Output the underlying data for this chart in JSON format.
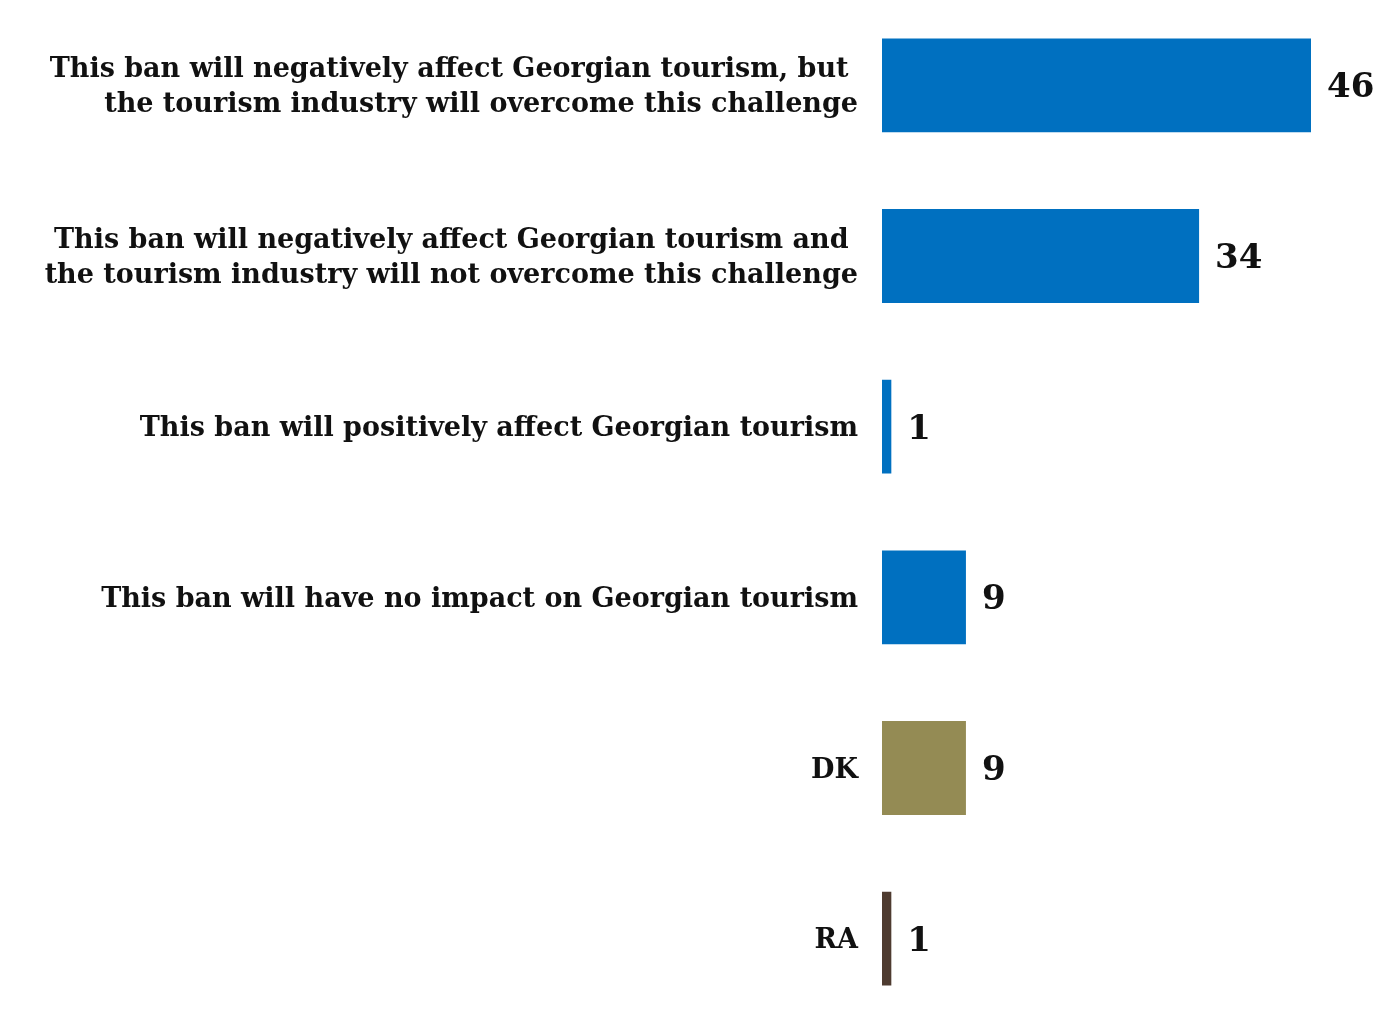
{
  "chart_data": {
    "type": "bar",
    "orientation": "horizontal",
    "data_labels": true,
    "categories": [
      "This ban will negatively affect Georgian tourism, but the tourism industry will overcome this challenge",
      "This ban will negatively affect Georgian tourism and the tourism industry will not overcome this challenge",
      "This ban will positively affect Georgian tourism",
      "This ban will have no impact on Georgian tourism",
      "DK",
      "RA"
    ],
    "values": [
      46,
      34,
      1,
      9,
      9,
      1
    ],
    "colors": [
      "#0070c0",
      "#0070c0",
      "#0070c0",
      "#0070c0",
      "#948b54",
      "#4e3b30"
    ]
  }
}
